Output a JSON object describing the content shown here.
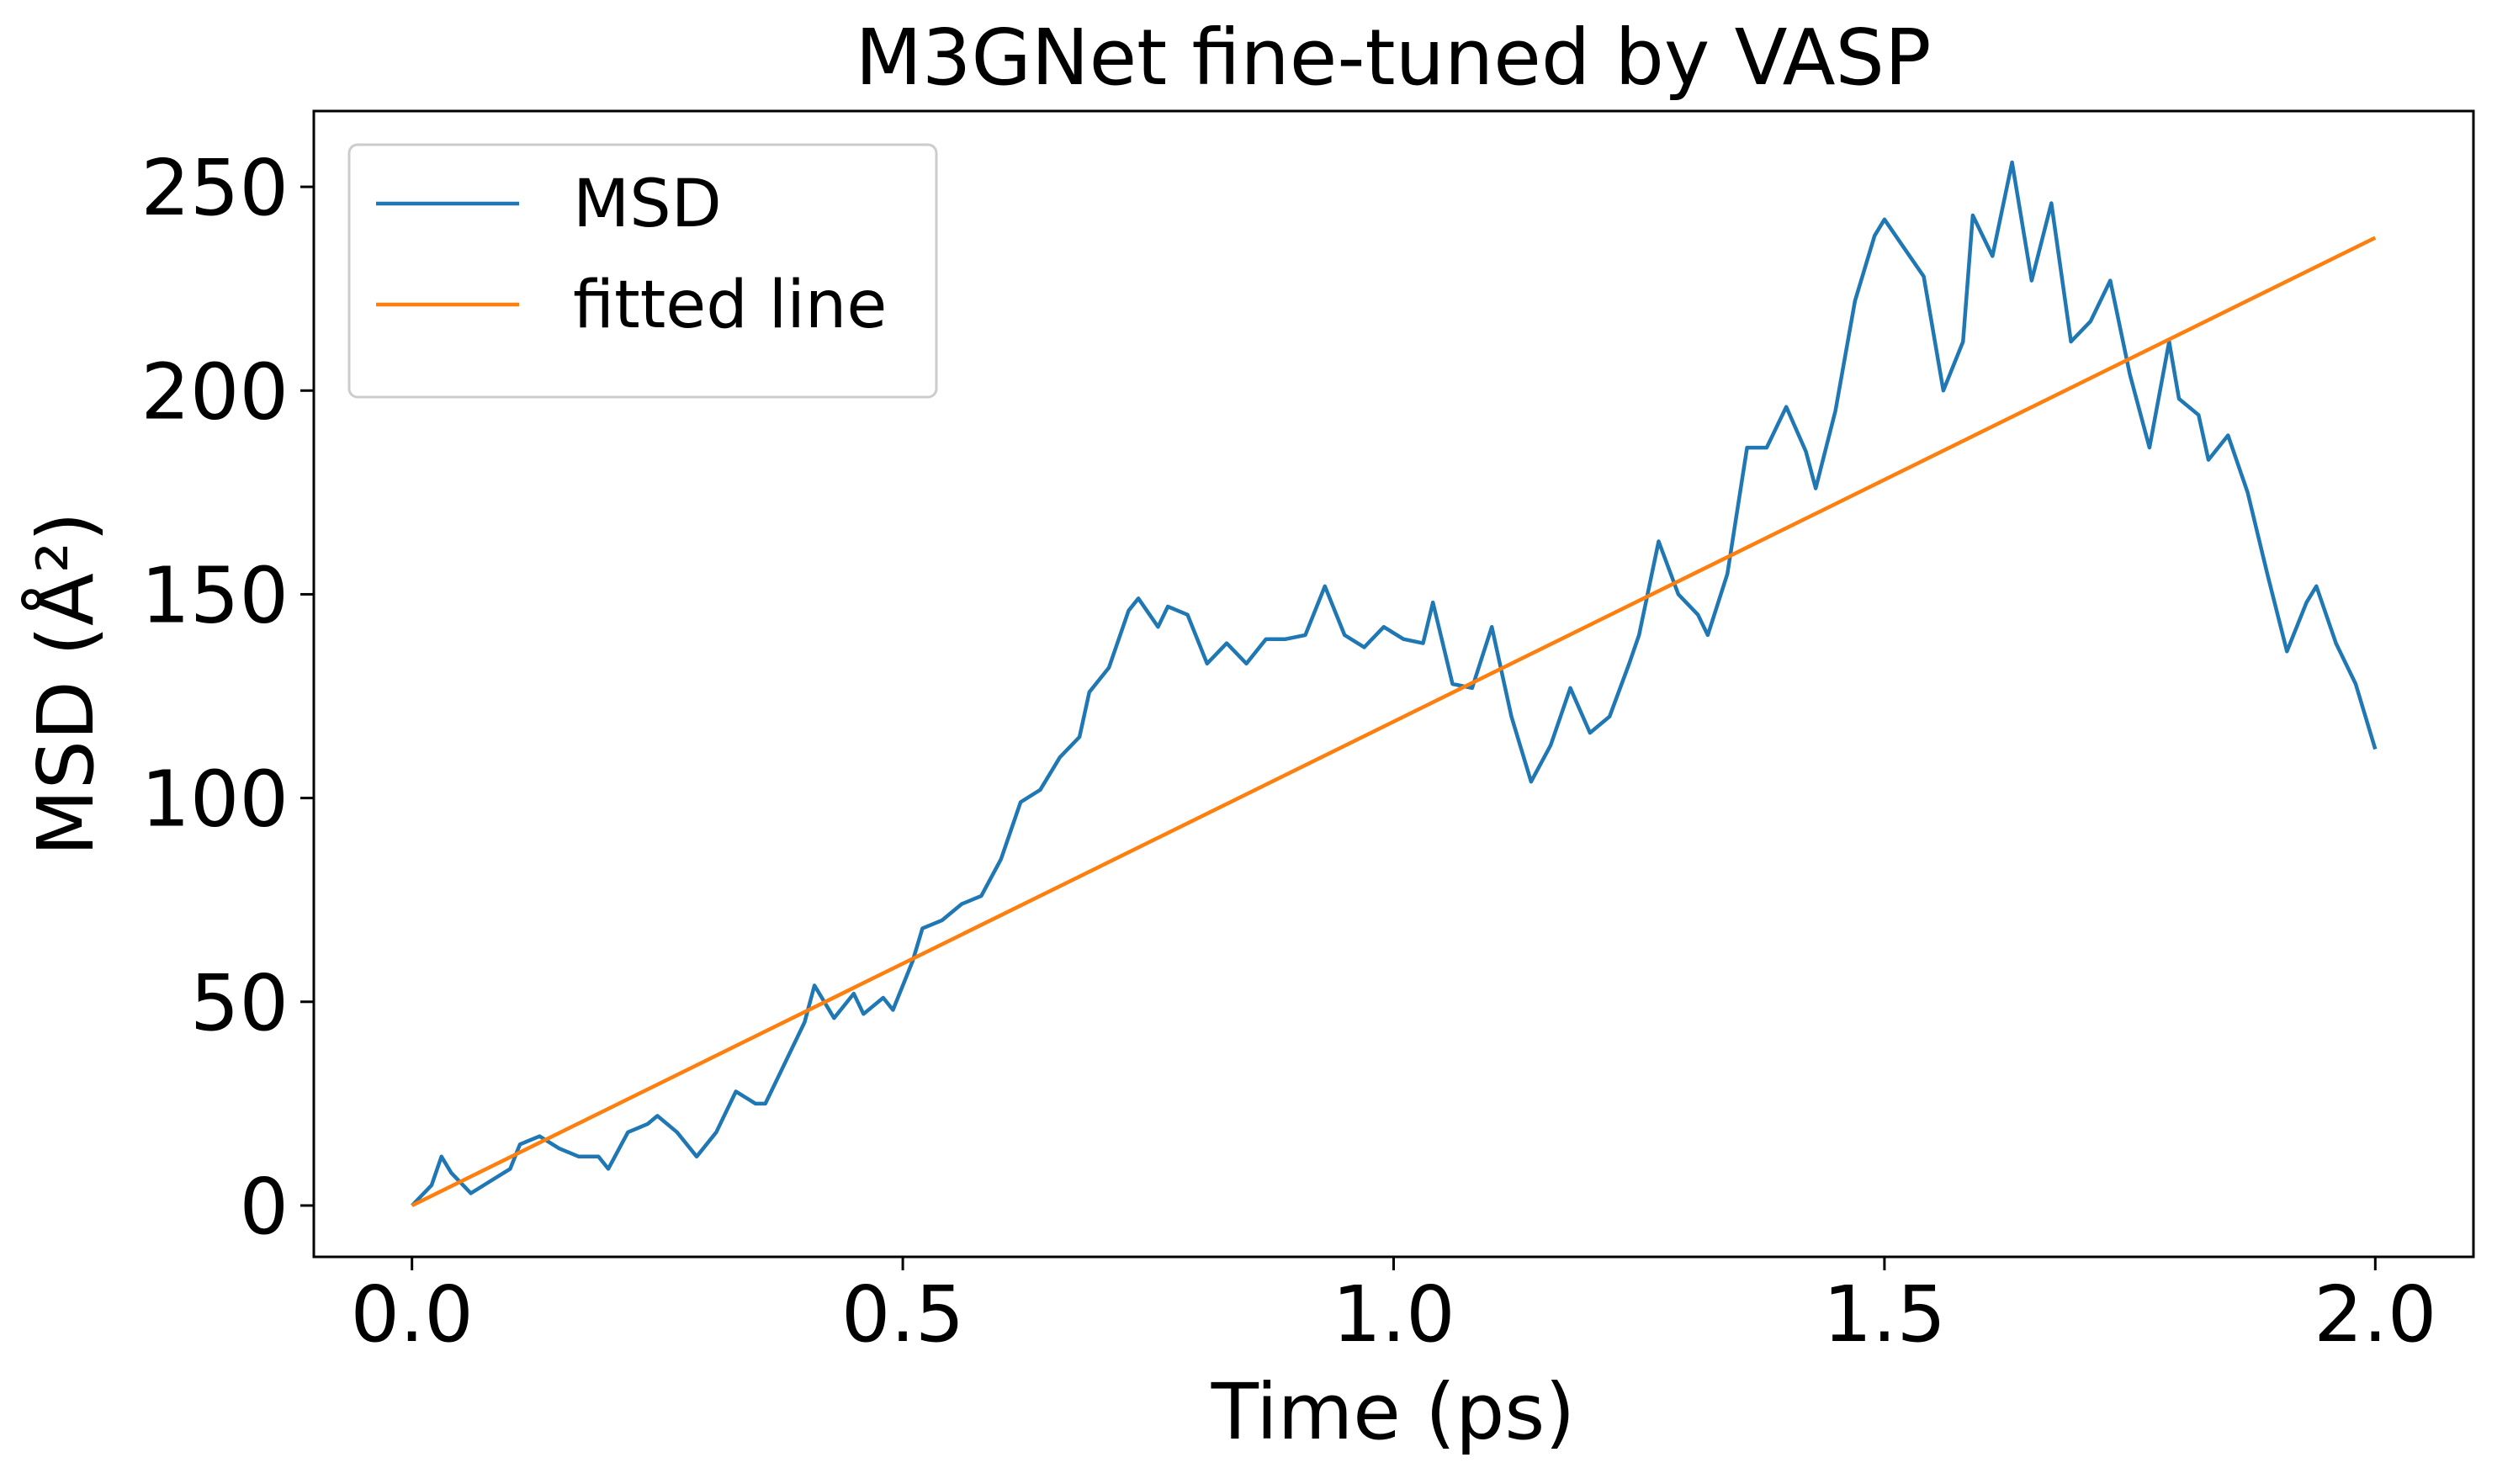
{
  "chart_data": {
    "type": "line",
    "title": "M3GNet fine-tuned by VASP",
    "x_label": "Time (ps)",
    "y_label": "MSD (Å²)",
    "xlim": [
      -0.1,
      2.1
    ],
    "ylim": [
      -12.6,
      268.6
    ],
    "xticks": [
      {
        "value": 0,
        "label": "0.0"
      },
      {
        "value": 0.5,
        "label": "0.5"
      },
      {
        "value": 1,
        "label": "1.0"
      },
      {
        "value": 1.5,
        "label": "1.5"
      },
      {
        "value": 2,
        "label": "2.0"
      }
    ],
    "yticks": [
      0,
      50,
      100,
      150,
      200,
      250
    ],
    "legend": "upper left",
    "series": [
      {
        "name": "MSD",
        "color": "#1f77b4",
        "x": [
          0,
          0.02,
          0.03,
          0.04,
          0.06,
          0.08,
          0.1,
          0.11,
          0.13,
          0.15,
          0.17,
          0.19,
          0.2,
          0.22,
          0.24,
          0.25,
          0.27,
          0.29,
          0.31,
          0.33,
          0.35,
          0.36,
          0.38,
          0.4,
          0.41,
          0.43,
          0.45,
          0.46,
          0.48,
          0.49,
          0.51,
          0.52,
          0.54,
          0.56,
          0.58,
          0.6,
          0.62,
          0.64,
          0.66,
          0.68,
          0.69,
          0.71,
          0.73,
          0.74,
          0.76,
          0.77,
          0.79,
          0.81,
          0.83,
          0.85,
          0.87,
          0.89,
          0.91,
          0.93,
          0.95,
          0.97,
          0.99,
          1.01,
          1.03,
          1.04,
          1.06,
          1.08,
          1.1,
          1.12,
          1.14,
          1.16,
          1.18,
          1.2,
          1.22,
          1.24,
          1.25,
          1.27,
          1.29,
          1.31,
          1.32,
          1.34,
          1.36,
          1.38,
          1.4,
          1.42,
          1.43,
          1.45,
          1.47,
          1.49,
          1.5,
          1.52,
          1.54,
          1.56,
          1.58,
          1.59,
          1.61,
          1.63,
          1.65,
          1.67,
          1.69,
          1.71,
          1.73,
          1.75,
          1.77,
          1.79,
          1.8,
          1.82,
          1.83,
          1.85,
          1.87,
          1.89,
          1.91,
          1.93,
          1.94,
          1.96,
          1.98,
          2.0
        ],
        "values": [
          0,
          5,
          12,
          8,
          3,
          6,
          9,
          15,
          17,
          14,
          12,
          12,
          9,
          18,
          20,
          22,
          18,
          12,
          18,
          28,
          25,
          25,
          35,
          45,
          54,
          46,
          52,
          47,
          51,
          48,
          60,
          68,
          70,
          74,
          76,
          85,
          99,
          102,
          110,
          115,
          126,
          132,
          146,
          149,
          142,
          147,
          145,
          133,
          138,
          133,
          139,
          139,
          140,
          152,
          140,
          137,
          142,
          139,
          138,
          148,
          128,
          127,
          142,
          120,
          104,
          113,
          127,
          116,
          120,
          133,
          140,
          163,
          150,
          145,
          140,
          155,
          186,
          186,
          196,
          185,
          176,
          195,
          222,
          238,
          242,
          235,
          228,
          200,
          212,
          243,
          233,
          256,
          227,
          246,
          212,
          217,
          227,
          204,
          186,
          212,
          198,
          194,
          183,
          189,
          175,
          155,
          136,
          148,
          152,
          138,
          128,
          112
        ]
      },
      {
        "name": "fitted line",
        "color": "#ff7f0e",
        "x": [
          0,
          2.0
        ],
        "values": [
          0,
          237.5
        ]
      }
    ]
  }
}
